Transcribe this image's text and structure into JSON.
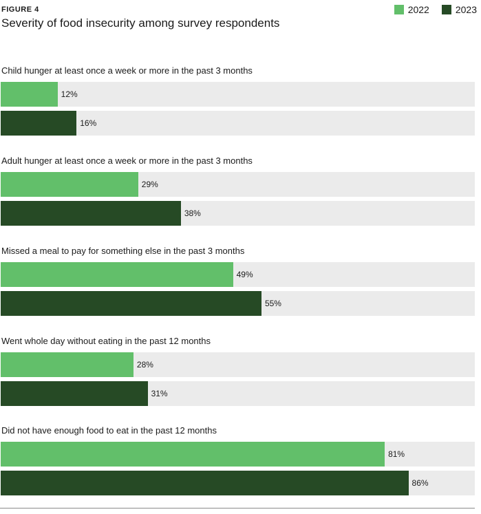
{
  "figure_label": "FIGURE 4",
  "colors": {
    "2022": "#62bf6a",
    "2023": "#264a25",
    "track": "#ebebeb"
  },
  "chart_data": {
    "type": "bar",
    "orientation": "horizontal",
    "title": "Severity of food insecurity among survey respondents",
    "xlim": [
      0,
      100
    ],
    "unit": "%",
    "legend": {
      "placement": "top-right",
      "entries": [
        "2022",
        "2023"
      ]
    },
    "categories": [
      "Child hunger at least once a week or more in the past 3 months",
      "Adult hunger at least once a week or more in the past 3 months",
      "Missed a meal to pay for something else in the past 3 months",
      "Went whole day without eating in the past 12 months",
      "Did not have enough food to eat in the past 12 months"
    ],
    "series": [
      {
        "name": "2022",
        "values": [
          12,
          29,
          49,
          28,
          81
        ],
        "labels": [
          "12%",
          "29%",
          "49%",
          "28%",
          "81%"
        ]
      },
      {
        "name": "2023",
        "values": [
          16,
          38,
          55,
          31,
          86
        ],
        "labels": [
          "16%",
          "38%",
          "55%",
          "31%",
          "86%"
        ]
      }
    ]
  }
}
